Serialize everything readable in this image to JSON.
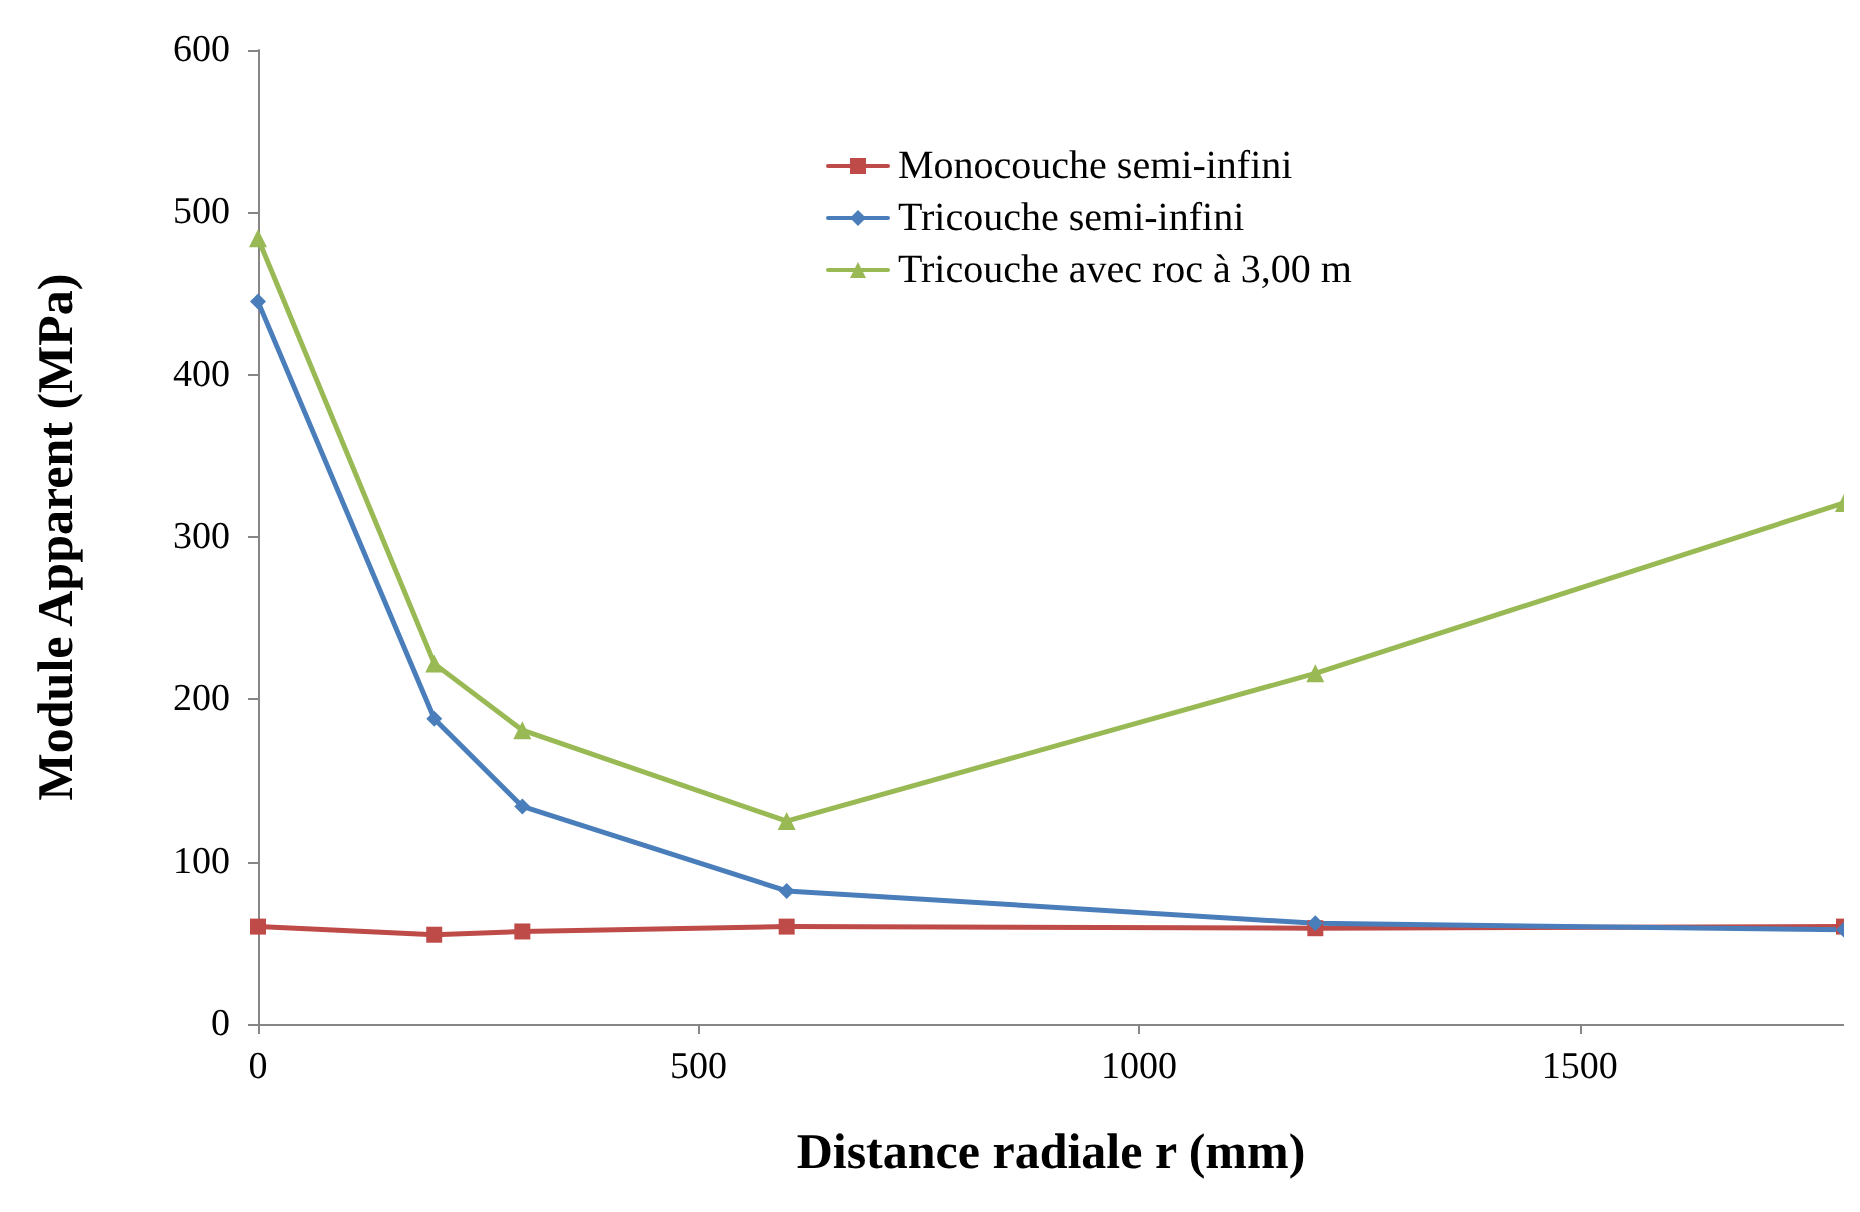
{
  "chart_data": {
    "type": "line",
    "xlabel": "Distance radiale r (mm)",
    "ylabel": "Module Apparent (MPa)",
    "x": [
      0,
      200,
      300,
      600,
      1200,
      1800
    ],
    "xlim": [
      0,
      1800
    ],
    "xticks": [
      0,
      500,
      1000,
      1500
    ],
    "ylim": [
      0,
      600
    ],
    "yticks": [
      0,
      100,
      200,
      300,
      400,
      500,
      600
    ],
    "grid": false,
    "legend": "top right",
    "series": [
      {
        "name": "Monocouche semi-infini",
        "color": "#be4b48",
        "marker": "square",
        "values": [
          60,
          55,
          57,
          60,
          59,
          60
        ]
      },
      {
        "name": "Tricouche semi-infini",
        "color": "#4a7ebb",
        "marker": "diamond",
        "values": [
          445,
          188,
          134,
          82,
          62,
          58
        ]
      },
      {
        "name": "Tricouche avec roc à 3,00 m",
        "color": "#98b954",
        "marker": "triangle",
        "values": [
          484,
          222,
          181,
          125,
          216,
          321
        ]
      }
    ]
  }
}
